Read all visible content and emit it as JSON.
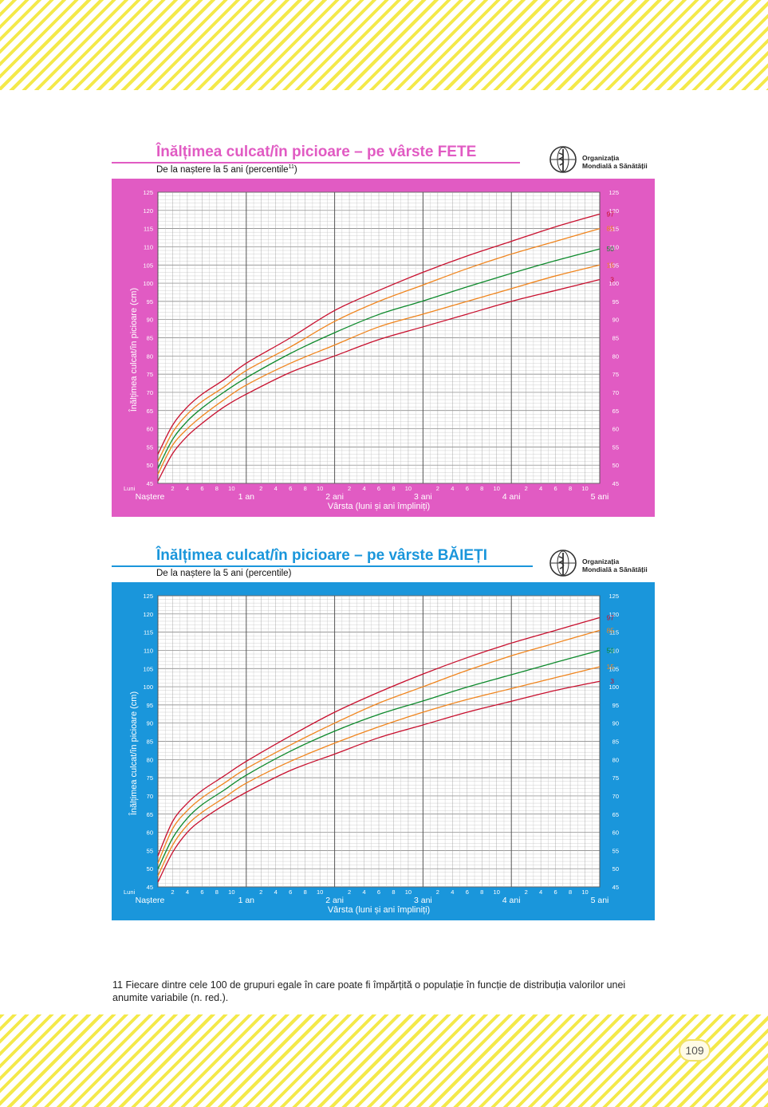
{
  "colors": {
    "girls_panel": "#e15bc3",
    "boys_panel": "#1a96db",
    "stripe": "#f4e94a",
    "p97": "#c8102e",
    "p85": "#f0851e",
    "p50": "#0e8a2c",
    "p15": "#f0851e",
    "p3": "#c8102e"
  },
  "who": {
    "line1": "Organizația",
    "line2": "Mondială a Sănătății",
    "logo_icon": "who-emblem-icon"
  },
  "girls": {
    "title": "Înălțimea culcat/în picioare – pe vârste FETE",
    "subtitle": "De la naștere la 5 ani (percentile",
    "subtitle_sup": "11",
    "subtitle_end": ")"
  },
  "boys": {
    "title": "Înălțimea culcat/în picioare – pe vârste BĂIEȚI",
    "subtitle": "De la naștere la 5 ani (percentile)",
    "subtitle_sup": "",
    "subtitle_end": ""
  },
  "footnote": "11  Fiecare dintre cele 100 de grupuri egale în care poate fi împărțită o populație în funcție de distribuția valorilor unei anumite variabile (n. red.).",
  "page_number": "109",
  "chart_data": [
    {
      "type": "line",
      "title": "Înălțimea culcat/în picioare – pe vârste FETE",
      "xlabel": "Vârsta (luni și ani împliniți)",
      "ylabel": "Înălțimea culcat/în picioare (cm)",
      "x_unit_label": "Luni",
      "x_start_label": "Naștere",
      "year_labels": [
        "1 an",
        "2 ani",
        "3 ani",
        "4 ani",
        "5 ani"
      ],
      "month_tick_labels": [
        "2",
        "4",
        "6",
        "8",
        "10"
      ],
      "xlim": [
        0,
        60
      ],
      "ylim": [
        45,
        125
      ],
      "y_ticks": [
        45,
        50,
        55,
        60,
        65,
        70,
        75,
        80,
        85,
        90,
        95,
        100,
        105,
        110,
        115,
        120,
        125
      ],
      "grid": true,
      "x": [
        0,
        2,
        4,
        6,
        9,
        12,
        18,
        24,
        30,
        36,
        42,
        48,
        54,
        60
      ],
      "series": [
        {
          "name": "97",
          "values": [
            53.0,
            61.0,
            66.0,
            69.5,
            73.5,
            78.0,
            85.0,
            92.5,
            98.0,
            103.0,
            107.5,
            111.5,
            115.5,
            119.0
          ]
        },
        {
          "name": "85",
          "values": [
            51.0,
            59.0,
            64.0,
            67.5,
            71.5,
            76.0,
            82.5,
            89.5,
            95.0,
            99.5,
            104.0,
            108.0,
            111.5,
            115.0
          ]
        },
        {
          "name": "50",
          "values": [
            49.1,
            57.1,
            62.1,
            65.7,
            70.1,
            74.0,
            80.7,
            86.4,
            91.4,
            95.1,
            99.0,
            102.7,
            106.2,
            109.4
          ]
        },
        {
          "name": "15",
          "values": [
            47.5,
            55.5,
            60.0,
            63.5,
            68.0,
            72.0,
            78.0,
            83.0,
            88.0,
            91.5,
            95.0,
            98.5,
            102.0,
            105.0
          ]
        },
        {
          "name": "3",
          "values": [
            45.6,
            53.2,
            58.0,
            61.5,
            66.0,
            69.5,
            75.5,
            80.0,
            84.5,
            88.0,
            91.5,
            95.0,
            98.0,
            101.0
          ]
        }
      ]
    },
    {
      "type": "line",
      "title": "Înălțimea culcat/în picioare – pe vârste BĂIEȚI",
      "xlabel": "Vârsta (luni și ani împliniți)",
      "ylabel": "Înălțimea culcat/în picioare (cm)",
      "x_unit_label": "Luni",
      "x_start_label": "Naștere",
      "year_labels": [
        "1 an",
        "2 ani",
        "3 ani",
        "4 ani",
        "5 ani"
      ],
      "month_tick_labels": [
        "2",
        "4",
        "6",
        "8",
        "10"
      ],
      "xlim": [
        0,
        60
      ],
      "ylim": [
        45,
        125
      ],
      "y_ticks": [
        45,
        50,
        55,
        60,
        65,
        70,
        75,
        80,
        85,
        90,
        95,
        100,
        105,
        110,
        115,
        120,
        125
      ],
      "grid": true,
      "x": [
        0,
        2,
        4,
        6,
        9,
        12,
        18,
        24,
        30,
        36,
        42,
        48,
        54,
        60
      ],
      "series": [
        {
          "name": "97",
          "values": [
            53.5,
            63.0,
            68.0,
            71.5,
            75.5,
            79.5,
            86.5,
            93.0,
            98.5,
            103.5,
            108.0,
            112.0,
            115.5,
            119.0
          ]
        },
        {
          "name": "85",
          "values": [
            51.5,
            61.0,
            66.0,
            69.5,
            73.5,
            77.5,
            84.0,
            90.0,
            95.5,
            100.0,
            104.5,
            108.5,
            112.0,
            115.5
          ]
        },
        {
          "name": "50",
          "values": [
            49.9,
            58.4,
            63.9,
            67.6,
            71.6,
            75.7,
            82.3,
            87.8,
            92.4,
            96.1,
            99.9,
            103.3,
            106.7,
            110.0
          ]
        },
        {
          "name": "15",
          "values": [
            48.0,
            56.5,
            62.0,
            65.5,
            69.5,
            73.5,
            79.5,
            84.5,
            89.0,
            93.0,
            96.5,
            99.5,
            102.5,
            105.5
          ]
        },
        {
          "name": "3",
          "values": [
            46.3,
            54.5,
            60.0,
            63.5,
            67.5,
            71.0,
            77.0,
            81.5,
            86.0,
            89.5,
            93.0,
            96.0,
            99.0,
            101.5
          ]
        }
      ]
    }
  ]
}
